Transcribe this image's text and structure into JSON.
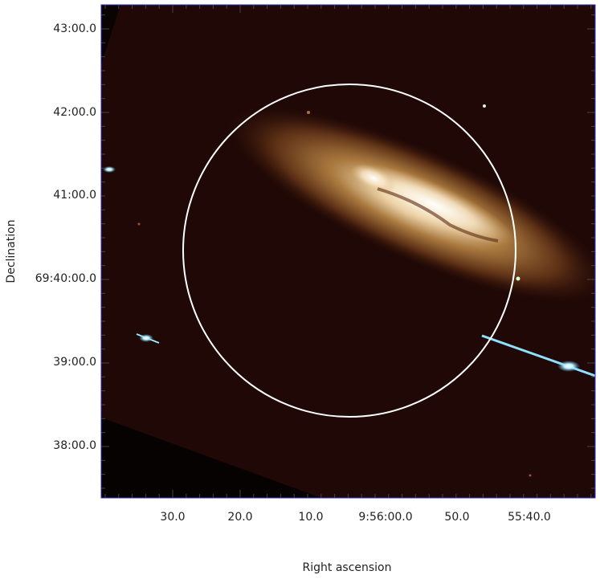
{
  "axes": {
    "x": {
      "label": "Right ascension",
      "ticks": [
        "30.0",
        "20.0",
        "10.0",
        "9:56:00.0",
        "50.0",
        "55:40.0"
      ]
    },
    "y": {
      "label": "Declination",
      "ticks": [
        "43:00.0",
        "42:00.0",
        "41:00.0",
        "69:40:00.0",
        "39:00.0",
        "38:00.0"
      ]
    }
  }
}
